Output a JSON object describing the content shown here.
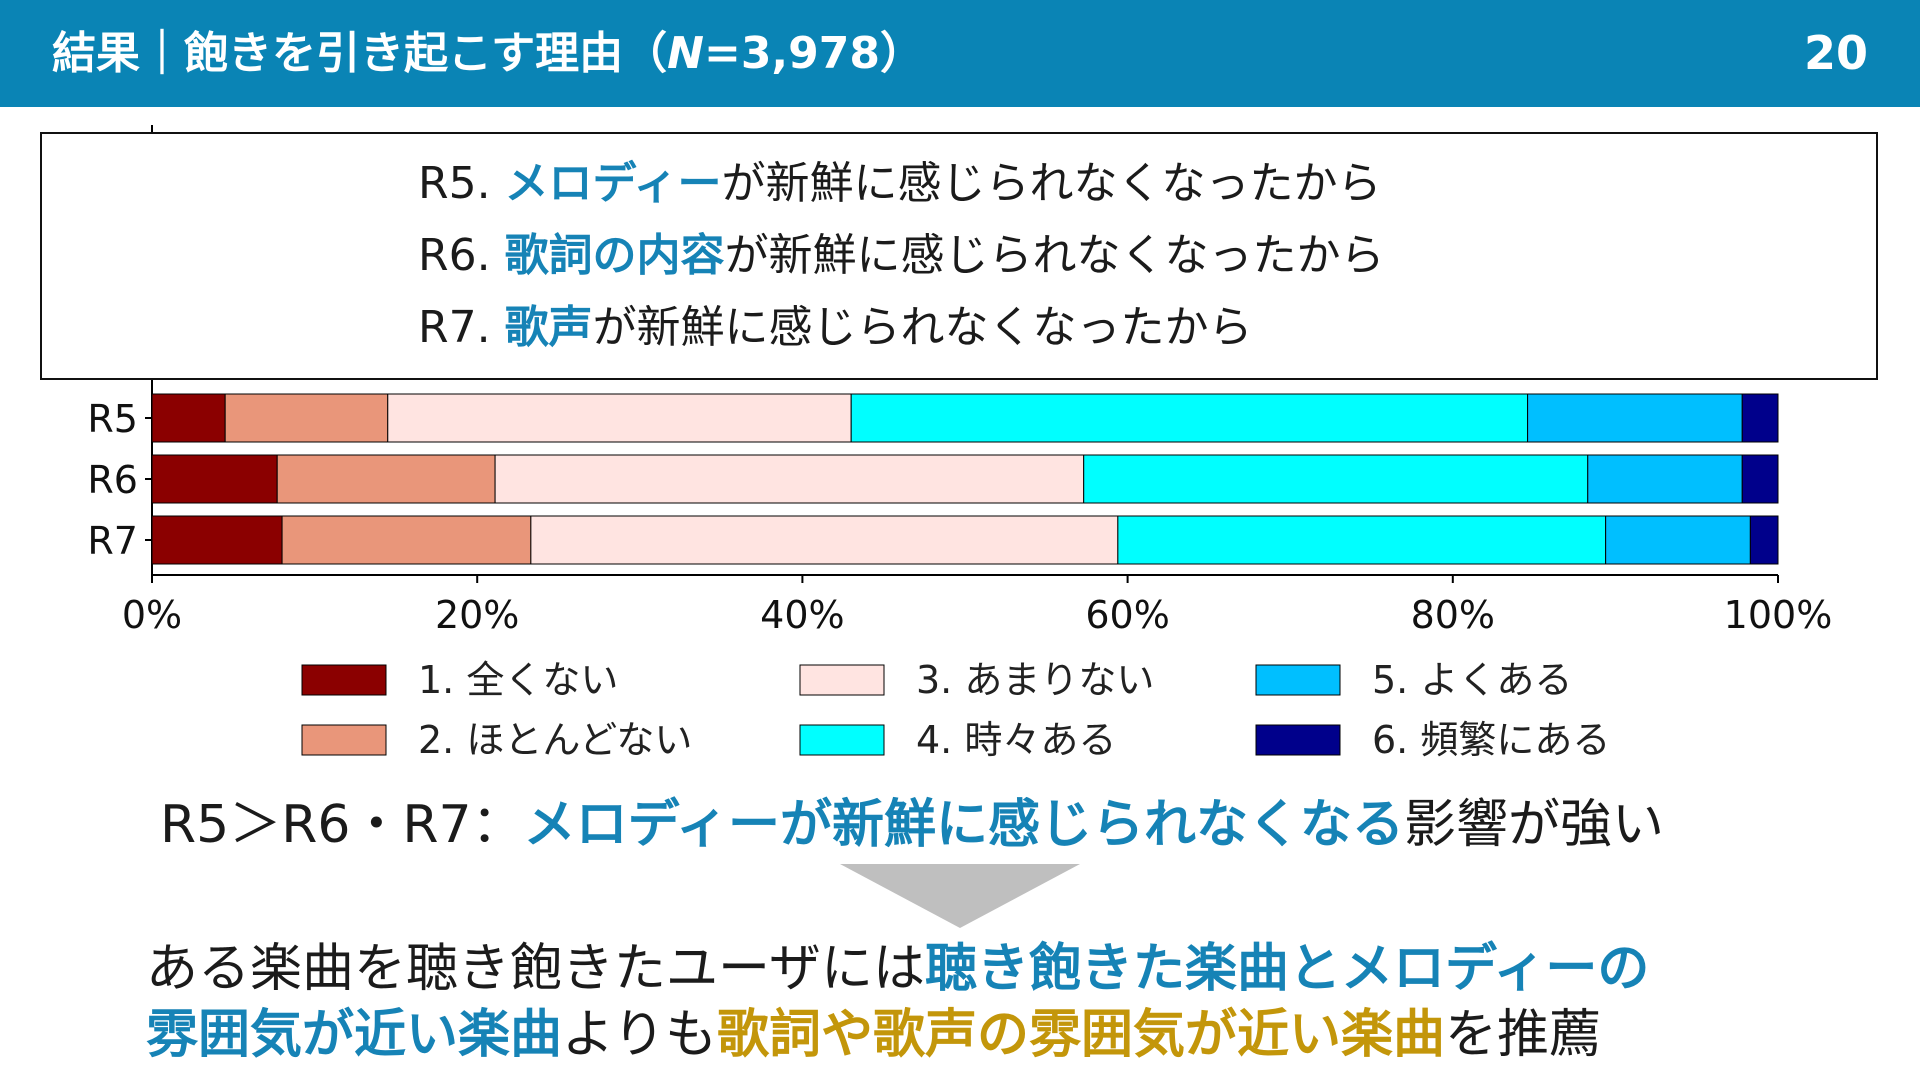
{
  "header": {
    "title_prefix": "結果｜飽きを引き起こす理由（",
    "title_n": "N",
    "title_suffix": "=3,978）",
    "page_number": "20"
  },
  "questions": [
    {
      "code": "R5.",
      "highlight": "メロディー",
      "rest": "が新鮮に感じられなくなったから"
    },
    {
      "code": "R6.",
      "highlight": "歌詞の内容",
      "rest": "が新鮮に感じられなくなったから"
    },
    {
      "code": "R7.",
      "highlight": "歌声",
      "rest": "が新鮮に感じられなくなったから"
    }
  ],
  "chart_data": {
    "type": "bar",
    "orientation": "horizontal",
    "stacked": true,
    "normalized": true,
    "categories": [
      "R5",
      "R6",
      "R7"
    ],
    "xlim": [
      0,
      100
    ],
    "xticks": [
      "0%",
      "20%",
      "40%",
      "60%",
      "80%",
      "100%"
    ],
    "series": [
      {
        "name": "1. 全くない",
        "color": "#8b0000",
        "values": [
          4.5,
          7.7,
          8.0
        ]
      },
      {
        "name": "2. ほとんどない",
        "color": "#e9967a",
        "values": [
          10.0,
          13.4,
          15.3
        ]
      },
      {
        "name": "3. あまりない",
        "color": "#ffe4e1",
        "values": [
          28.5,
          36.2,
          36.1
        ]
      },
      {
        "name": "4. 時々ある",
        "color": "#00ffff",
        "values": [
          41.6,
          31.0,
          30.0
        ]
      },
      {
        "name": "5. よくある",
        "color": "#00bfff",
        "values": [
          13.2,
          9.5,
          8.9
        ]
      },
      {
        "name": "6. 頻繁にある",
        "color": "#00008b",
        "values": [
          2.2,
          2.2,
          1.7
        ]
      }
    ],
    "legend_position": "bottom"
  },
  "conclusion": {
    "prefix": "R5＞R6・R7：",
    "highlight": "メロディーが新鮮に感じられなくなる",
    "suffix": "影響が強い"
  },
  "recommendation": {
    "line1_a": "ある楽曲を聴き飽きたユーザには",
    "line1_b": "聴き飽きた楽曲とメロディーの",
    "line2_a": "雰囲気が近い楽曲",
    "line2_b": "よりも",
    "line2_c": "歌詞や歌声の雰囲気が近い楽曲",
    "line2_d": "を推薦"
  }
}
